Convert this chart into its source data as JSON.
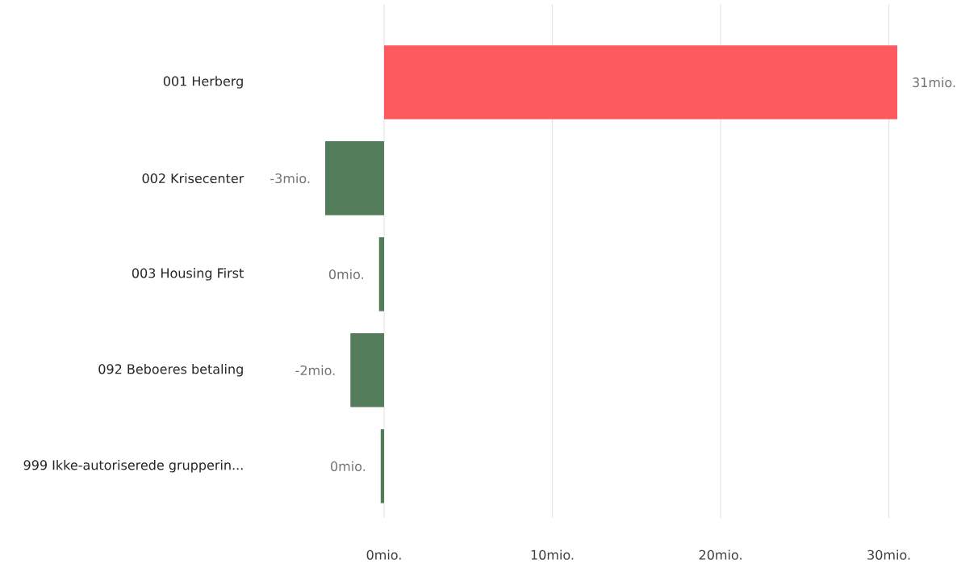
{
  "chart_data": {
    "type": "bar",
    "orientation": "horizontal",
    "categories": [
      "001 Herberg",
      "002 Krisecenter",
      "003 Housing First",
      "092 Beboeres betaling",
      "999 Ikke-autoriserede grupperin..."
    ],
    "values": [
      30.5,
      -3.5,
      -0.3,
      -2.0,
      -0.2
    ],
    "colors": [
      "#fd5a60",
      "#537d5a",
      "#537d5a",
      "#537d5a",
      "#537d5a"
    ],
    "value_labels": [
      "31mio.",
      "-3mio.",
      "0mio.",
      "-2mio.",
      "0mio."
    ],
    "xlim": [
      -3.5,
      30.5
    ],
    "xticks": [
      {
        "value": 0,
        "label": "0mio."
      },
      {
        "value": 10,
        "label": "10mio."
      },
      {
        "value": 20,
        "label": "20mio."
      },
      {
        "value": 30,
        "label": "30mio."
      }
    ],
    "grid": "x"
  }
}
